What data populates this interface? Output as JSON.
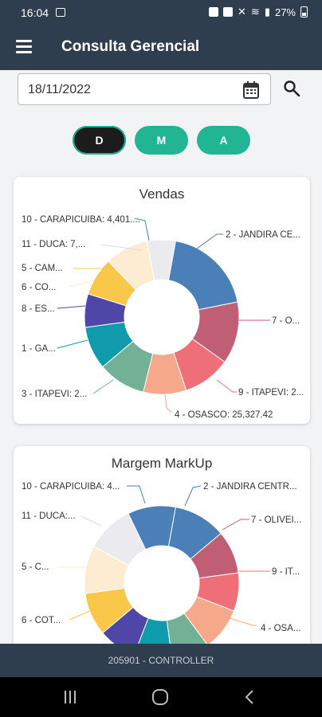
{
  "status": {
    "time": "16:04",
    "battery": "27%"
  },
  "appbar": {
    "title": "Consulta Gerencial"
  },
  "filter": {
    "date": "18/11/2022",
    "periods": [
      "D",
      "M",
      "A"
    ]
  },
  "vendas": {
    "title": "Vendas",
    "labels": [
      "10 - CARAPICUIBA: 4,401....",
      "11 - DUCA: 7,...",
      "5 - CAM...",
      "6 - CO...",
      "8 - ES...",
      "1 - GA...",
      "3 - ITAPEVI: 2...",
      "2 - JANDIRA CE...",
      "7 - O...",
      "9 - ITAPEVI: 2...",
      "4 - OSASCO: 25,327.42"
    ]
  },
  "markup": {
    "title": "Margem MarkUp",
    "labels": [
      "10 - CARAPICUIBA: 4...",
      "11 - DUCA:...",
      "5 - C...",
      "6 - COT...",
      "2 - JANDIRA CENTR...",
      "7 - OLIVEI...",
      "9 - IT...",
      "4 - OSA..."
    ]
  },
  "footer": {
    "user": "205901 - CONTROLLER"
  },
  "chart_data": [
    {
      "type": "pie",
      "title": "Vendas",
      "colors": [
        "#4a7fb8",
        "#c05e75",
        "#ef6f79",
        "#f5a98a",
        "#72b196",
        "#0f9bac",
        "#4f47a8",
        "#f9c84a",
        "#fdebd2",
        "#ebebef"
      ],
      "values": [
        19,
        13,
        10,
        9,
        10,
        9,
        7,
        8,
        9,
        6
      ],
      "slices": [
        "2 - JANDIRA CE...",
        "7 - O...",
        "9 - ITAPEVI: 2...",
        "4 - OSASCO: 25,327.42",
        "3 - ITAPEVI: 2...",
        "1 - GA...",
        "8 - ES...",
        "5 - CAM...",
        "11 - DUCA: 7,...",
        "10 - CARAPICUIBA: 4,401...."
      ]
    },
    {
      "type": "pie",
      "title": "Margem MarkUp",
      "colors": [
        "#4a7fb8",
        "#c05e75",
        "#ef6f79",
        "#f5a98a",
        "#72b196",
        "#0f9bac",
        "#4f47a8",
        "#f9c84a",
        "#fdebd2",
        "#ebebef",
        "#4a7fb8"
      ],
      "values": [
        11,
        9,
        8,
        9,
        8,
        8,
        8,
        9,
        10,
        10,
        10
      ],
      "slices": [
        "2 - JANDIRA CENTR...",
        "7 - OLIVEI...",
        "9 - IT...",
        "4 - OSA...",
        "",
        "",
        "",
        "6 - COT...",
        "5 - C...",
        "11 - DUCA:...",
        "10 - CARAPICUIBA: 4..."
      ]
    }
  ]
}
